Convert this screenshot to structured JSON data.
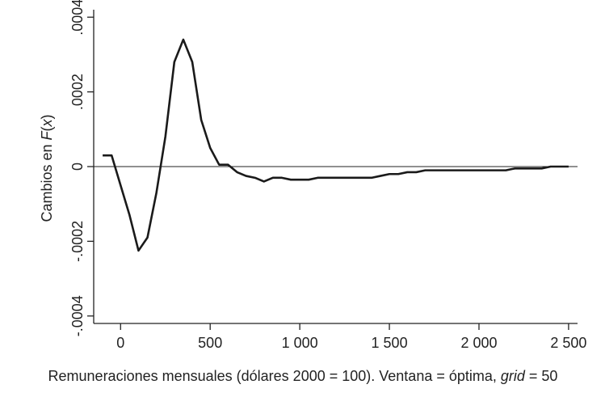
{
  "chart_data": {
    "type": "line",
    "x": [
      -100,
      -50,
      0,
      50,
      100,
      150,
      200,
      250,
      300,
      350,
      400,
      450,
      500,
      550,
      600,
      650,
      700,
      750,
      800,
      850,
      900,
      950,
      1000,
      1050,
      1100,
      1150,
      1200,
      1250,
      1300,
      1350,
      1400,
      1450,
      1500,
      1550,
      1600,
      1650,
      1700,
      1750,
      1800,
      1850,
      1900,
      1950,
      2000,
      2050,
      2100,
      2150,
      2200,
      2250,
      2300,
      2350,
      2400,
      2450,
      2500
    ],
    "series": [
      {
        "values": [
          3e-05,
          3e-05,
          -5e-05,
          -0.00013,
          -0.000225,
          -0.00019,
          -7e-05,
          8e-05,
          0.00028,
          0.00034,
          0.00028,
          0.000125,
          5e-05,
          5e-06,
          5e-06,
          -1.5e-05,
          -2.5e-05,
          -3e-05,
          -4e-05,
          -3e-05,
          -3e-05,
          -3.5e-05,
          -3.5e-05,
          -3.5e-05,
          -3e-05,
          -3e-05,
          -3e-05,
          -3e-05,
          -3e-05,
          -3e-05,
          -3e-05,
          -2.5e-05,
          -2e-05,
          -2e-05,
          -1.5e-05,
          -1.5e-05,
          -1e-05,
          -1e-05,
          -1e-05,
          -1e-05,
          -1e-05,
          -1e-05,
          -1e-05,
          -1e-05,
          -1e-05,
          -1e-05,
          -5e-06,
          -5e-06,
          -5e-06,
          -5e-06,
          0,
          0,
          0
        ],
        "color": "#1a1a1a"
      }
    ],
    "xlim": [
      -150,
      2550
    ],
    "ylim": [
      -0.00042,
      0.00042
    ],
    "xticks": [
      0,
      500,
      1000,
      1500,
      2000,
      2500
    ],
    "xtick_labels": [
      "0",
      "500",
      "1 000",
      "1 500",
      "2 000",
      "2 500"
    ],
    "yticks": [
      -0.0004,
      -0.0002,
      0,
      0.0002,
      0.0004
    ],
    "ytick_labels": [
      "-.0004",
      "-.0002",
      "0",
      ".0002",
      ".0004"
    ],
    "reference_line_y": 0,
    "grid": false,
    "ylabel": "Cambios en F(x)",
    "ylabel_parts": {
      "before": "Cambios en ",
      "italic": "F",
      "paren_open": "(",
      "italic_var": "x",
      "paren_close": ")"
    },
    "xlabel": "Remuneraciones mensuales  (dólares 2000 = 100). Ventana = óptima, grid = 50",
    "xlabel_parts": {
      "main": "Remuneraciones mensuales  (dólares 2000 = 100). Ventana = óptima, ",
      "italic": "grid",
      "tail": " = 50"
    },
    "colors": {
      "axis": "#222222",
      "line": "#1a1a1a",
      "text": "#222222"
    }
  }
}
